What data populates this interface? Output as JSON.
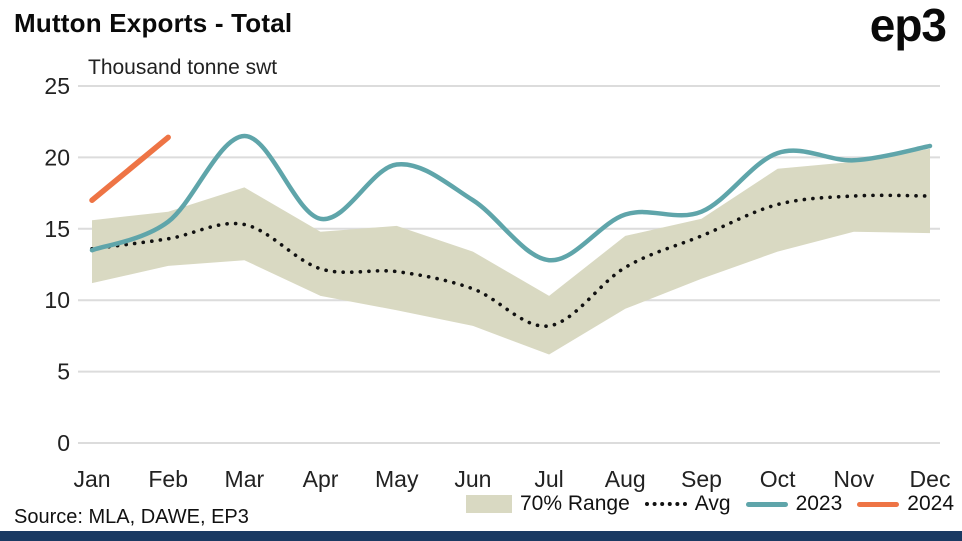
{
  "header": {
    "title": "Mutton Exports - Total",
    "logo": "ep3"
  },
  "chart_data": {
    "type": "line",
    "title": "Mutton Exports - Total",
    "subtitle": "Thousand tonne swt",
    "categories": [
      "Jan",
      "Feb",
      "Mar",
      "Apr",
      "May",
      "Jun",
      "Jul",
      "Aug",
      "Sep",
      "Oct",
      "Nov",
      "Dec"
    ],
    "ylim": [
      0,
      25
    ],
    "yticks": [
      0,
      5,
      10,
      15,
      20,
      25
    ],
    "grid": "horizontal",
    "legend_position": "bottom",
    "units": "Thousand tonne swt",
    "series": [
      {
        "name": "70% Range",
        "type": "band",
        "color": "#d9d9c2",
        "upper": [
          15.6,
          16.2,
          17.9,
          14.8,
          15.2,
          13.4,
          10.3,
          14.5,
          15.7,
          19.2,
          19.7,
          20.6
        ],
        "lower": [
          11.2,
          12.4,
          12.8,
          10.3,
          9.3,
          8.2,
          6.2,
          9.4,
          11.5,
          13.4,
          14.8,
          14.7
        ]
      },
      {
        "name": "Avg",
        "type": "dotted-line",
        "color": "#111111",
        "values": [
          13.6,
          14.3,
          15.3,
          12.2,
          12.0,
          10.8,
          8.2,
          12.3,
          14.5,
          16.7,
          17.3,
          17.3
        ]
      },
      {
        "name": "2023",
        "type": "line",
        "color": "#5fa5aa",
        "values": [
          13.5,
          15.5,
          21.5,
          15.7,
          19.5,
          17.0,
          12.8,
          16.0,
          16.2,
          20.3,
          19.8,
          20.8
        ]
      },
      {
        "name": "2024",
        "type": "line",
        "color": "#ee7445",
        "values": [
          17.0,
          21.4,
          null,
          null,
          null,
          null,
          null,
          null,
          null,
          null,
          null,
          null
        ]
      }
    ]
  },
  "legend": {
    "items": [
      {
        "label": "70% Range",
        "swatch": "band"
      },
      {
        "label": "Avg",
        "swatch": "dotted"
      },
      {
        "label": "2023",
        "swatch": "line-2023"
      },
      {
        "label": "2024",
        "swatch": "line-2024"
      }
    ]
  },
  "footer": {
    "source": "Source: MLA, DAWE, EP3"
  },
  "colors": {
    "band": "#d9d9c2",
    "avg": "#111111",
    "y2023": "#5fa5aa",
    "y2024": "#ee7445",
    "grid": "#dcdcdc",
    "text": "#222222",
    "footer_bar": "#1a3a63"
  }
}
